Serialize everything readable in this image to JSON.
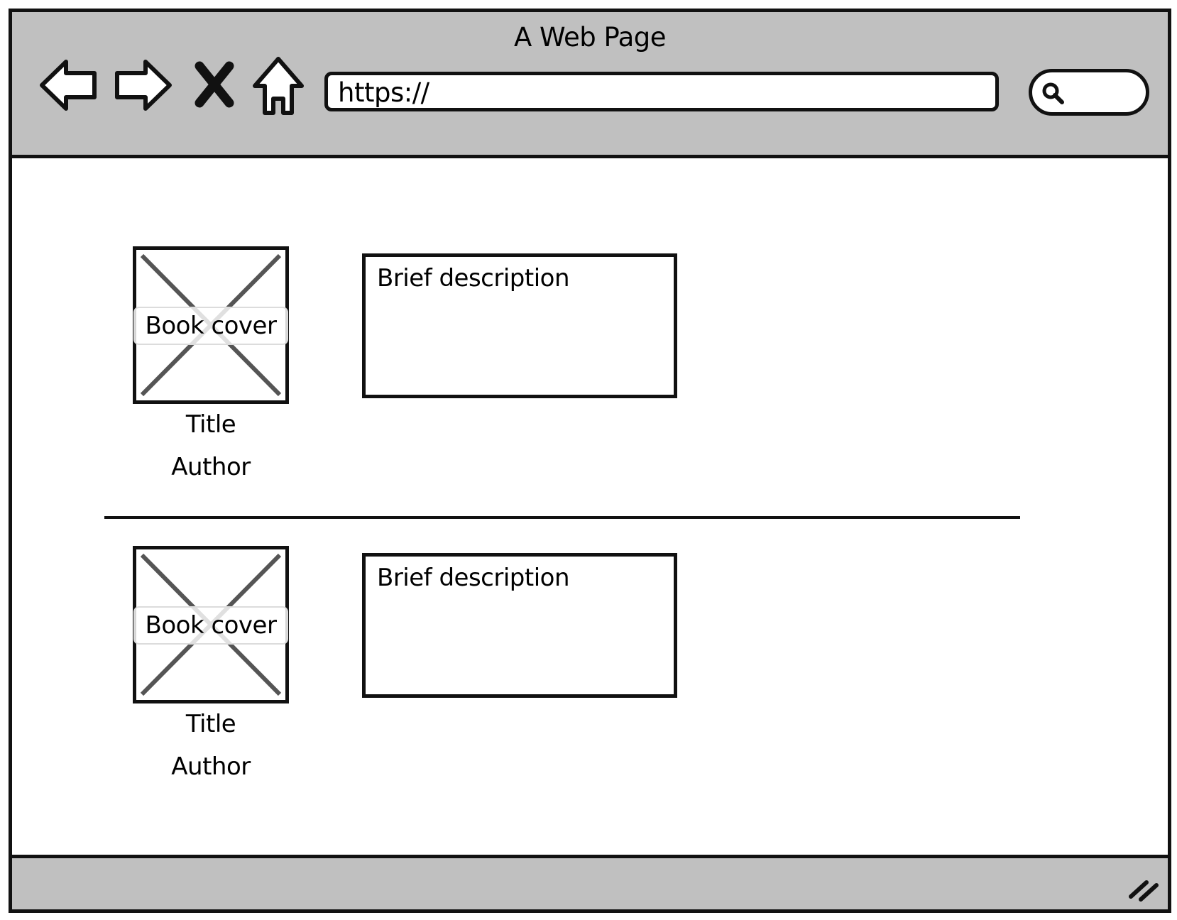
{
  "window": {
    "title": "A Web Page"
  },
  "toolbar": {
    "icons": [
      "back-arrow-icon",
      "forward-arrow-icon",
      "stop-icon",
      "home-icon"
    ],
    "address_value": "https://",
    "search_icon": "search-icon"
  },
  "books": [
    {
      "cover_label": "Book cover",
      "title": "Title",
      "author": "Author",
      "description": "Brief description"
    },
    {
      "cover_label": "Book cover",
      "title": "Title",
      "author": "Author",
      "description": "Brief description"
    }
  ],
  "colors": {
    "chrome": "#c0c0c0",
    "stroke": "#111111",
    "placeholder_x": "#555555",
    "page": "#ffffff"
  }
}
